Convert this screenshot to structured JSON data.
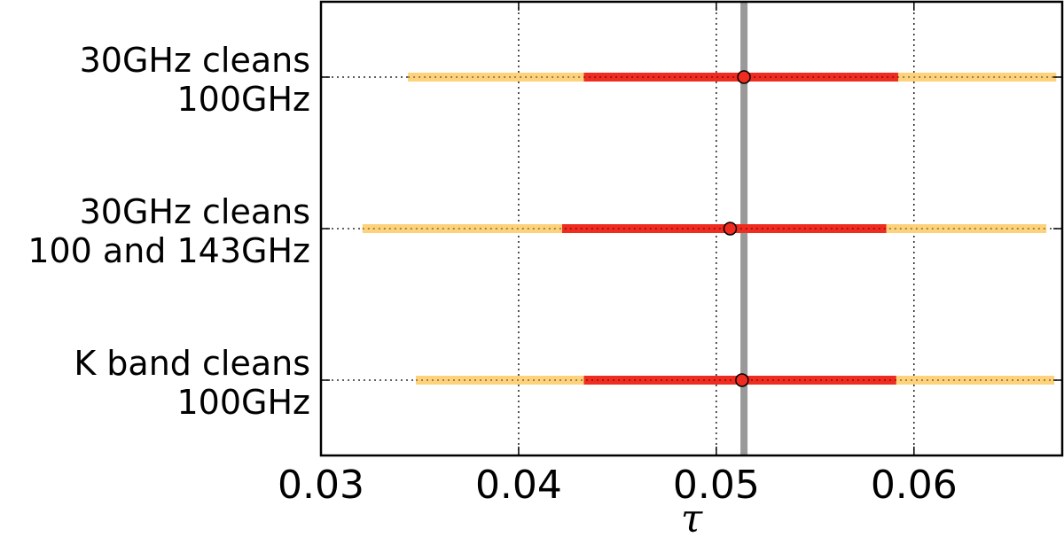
{
  "chart_data": {
    "type": "errorbar",
    "title": "",
    "xlabel": "τ",
    "ylabel": "",
    "xlim": [
      0.03,
      0.0675
    ],
    "x_ticks": [
      "0.03",
      "0.04",
      "0.05",
      "0.06"
    ],
    "x_tick_values": [
      0.03,
      0.04,
      0.05,
      0.06
    ],
    "grid": true,
    "reference_value": 0.0514,
    "colors": {
      "outer_interval": "#fdd27a",
      "inner_interval": "#f02b20",
      "marker": "#f02b20",
      "reference_line": "#999999"
    },
    "categories": [
      {
        "lines": [
          "30GHz cleans",
          "100GHz"
        ],
        "value": 0.0514,
        "inner": [
          0.0433,
          0.0592
        ],
        "outer": [
          0.0344,
          0.0672
        ]
      },
      {
        "lines": [
          "30GHz cleans",
          "100 and 143GHz"
        ],
        "value": 0.0507,
        "inner": [
          0.0422,
          0.0586
        ],
        "outer": [
          0.0321,
          0.0667
        ]
      },
      {
        "lines": [
          "K band cleans",
          "100GHz"
        ],
        "value": 0.0513,
        "inner": [
          0.0433,
          0.0591
        ],
        "outer": [
          0.0348,
          0.0671
        ]
      }
    ]
  }
}
